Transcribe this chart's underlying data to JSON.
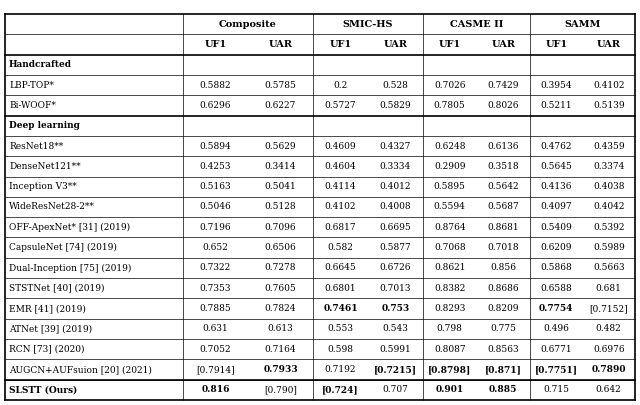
{
  "section_handcrafted": "Handcrafted",
  "section_deep": "Deep learning",
  "group_labels": [
    "Composite",
    "SMIC-HS",
    "CASME II",
    "SAMM"
  ],
  "sub_labels": [
    "UF1",
    "UAR",
    "UF1",
    "UAR",
    "UF1",
    "UAR",
    "UF1",
    "UAR"
  ],
  "rows_hc": [
    {
      "name": "LBP-TOP*",
      "vals": [
        "0.5882",
        "0.5785",
        "0.2",
        "0.528",
        "0.7026",
        "0.7429",
        "0.3954",
        "0.4102"
      ],
      "bold": []
    },
    {
      "name": "Bi-WOOF*",
      "vals": [
        "0.6296",
        "0.6227",
        "0.5727",
        "0.5829",
        "0.7805",
        "0.8026",
        "0.5211",
        "0.5139"
      ],
      "bold": []
    }
  ],
  "rows_dl": [
    {
      "name": "ResNet18**",
      "vals": [
        "0.5894",
        "0.5629",
        "0.4609",
        "0.4327",
        "0.6248",
        "0.6136",
        "0.4762",
        "0.4359"
      ],
      "bold": []
    },
    {
      "name": "DenseNet121**",
      "vals": [
        "0.4253",
        "0.3414",
        "0.4604",
        "0.3334",
        "0.2909",
        "0.3518",
        "0.5645",
        "0.3374"
      ],
      "bold": []
    },
    {
      "name": "Inception V3**",
      "vals": [
        "0.5163",
        "0.5041",
        "0.4114",
        "0.4012",
        "0.5895",
        "0.5642",
        "0.4136",
        "0.4038"
      ],
      "bold": []
    },
    {
      "name": "WideResNet28-2**",
      "vals": [
        "0.5046",
        "0.5128",
        "0.4102",
        "0.4008",
        "0.5594",
        "0.5687",
        "0.4097",
        "0.4042"
      ],
      "bold": []
    },
    {
      "name": "OFF-ApexNet* [31] (2019)",
      "vals": [
        "0.7196",
        "0.7096",
        "0.6817",
        "0.6695",
        "0.8764",
        "0.8681",
        "0.5409",
        "0.5392"
      ],
      "bold": []
    },
    {
      "name": "CapsuleNet [74] (2019)",
      "vals": [
        "0.652",
        "0.6506",
        "0.582",
        "0.5877",
        "0.7068",
        "0.7018",
        "0.6209",
        "0.5989"
      ],
      "bold": []
    },
    {
      "name": "Dual-Inception [75] (2019)",
      "vals": [
        "0.7322",
        "0.7278",
        "0.6645",
        "0.6726",
        "0.8621",
        "0.856",
        "0.5868",
        "0.5663"
      ],
      "bold": []
    },
    {
      "name": "STSTNet [40] (2019)",
      "vals": [
        "0.7353",
        "0.7605",
        "0.6801",
        "0.7013",
        "0.8382",
        "0.8686",
        "0.6588",
        "0.681"
      ],
      "bold": []
    },
    {
      "name": "EMR [41] (2019)",
      "vals": [
        "0.7885",
        "0.7824",
        "0.7461",
        "0.753",
        "0.8293",
        "0.8209",
        "0.7754",
        "[0.7152]"
      ],
      "bold": [
        2,
        3,
        6
      ]
    },
    {
      "name": "ATNet [39] (2019)",
      "vals": [
        "0.631",
        "0.613",
        "0.553",
        "0.543",
        "0.798",
        "0.775",
        "0.496",
        "0.482"
      ],
      "bold": []
    },
    {
      "name": "RCN [73] (2020)",
      "vals": [
        "0.7052",
        "0.7164",
        "0.598",
        "0.5991",
        "0.8087",
        "0.8563",
        "0.6771",
        "0.6976"
      ],
      "bold": []
    },
    {
      "name": "AUGCN+AUFsuion [20] (2021)",
      "vals": [
        "[0.7914]",
        "0.7933",
        "0.7192",
        "[0.7215]",
        "[0.8798]",
        "[0.871]",
        "[0.7751]",
        "0.7890"
      ],
      "bold": [
        1,
        3,
        4,
        5,
        6,
        7
      ]
    }
  ],
  "row_last": {
    "name": "SLSTT (Ours)",
    "vals": [
      "0.816",
      "[0.790]",
      "[0.724]",
      "0.707",
      "0.901",
      "0.885",
      "0.715",
      "0.642"
    ],
    "bold": [
      0,
      2,
      4,
      5
    ]
  },
  "fs": 6.5,
  "hfs": 7.0,
  "lw_thick": 1.2,
  "lw_thin": 0.5
}
